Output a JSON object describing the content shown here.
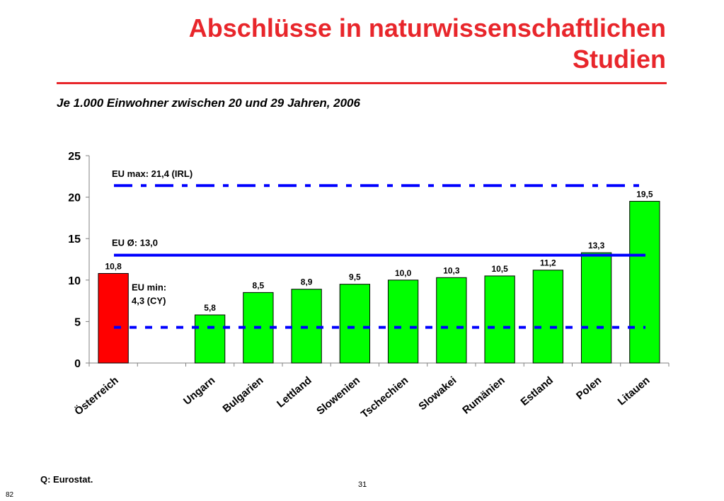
{
  "header": {
    "title_lines": [
      "Abschlüsse in naturwissenschaftlichen",
      "Studien"
    ],
    "subtitle": "Je 1.000 Einwohner zwischen 20 und 29 Jahren, 2006"
  },
  "footer": {
    "source": "Q: Eurostat.",
    "page_number": "31",
    "corner_number": "82"
  },
  "colors": {
    "title": "#e8262b",
    "highlight_bar": "#ff0000",
    "bar": "#00ff00",
    "reference_lines": "#0000ff"
  },
  "chart_data": {
    "type": "bar",
    "categories": [
      "Österreich",
      "",
      "Ungarn",
      "Bulgarien",
      "Lettland",
      "Slowenien",
      "Tschechien",
      "Slowakei",
      "Rumänien",
      "Estland",
      "Polen",
      "Litauen"
    ],
    "values": [
      10.8,
      null,
      5.8,
      8.5,
      8.9,
      9.5,
      10.0,
      10.3,
      10.5,
      11.2,
      13.3,
      19.5
    ],
    "value_labels": [
      "10,8",
      "",
      "5,8",
      "8,5",
      "8,9",
      "9,5",
      "10,0",
      "10,3",
      "10,5",
      "11,2",
      "13,3",
      "19,5"
    ],
    "highlight_index": 0,
    "ylim": [
      0,
      25
    ],
    "yticks": [
      0,
      5,
      10,
      15,
      20,
      25
    ],
    "grid": false,
    "reference_lines": [
      {
        "value": 21.4,
        "label": "EU max: 21,4 (IRL)",
        "style": "dash-dot"
      },
      {
        "value": 13.0,
        "label": "EU Ø: 13,0",
        "style": "solid"
      },
      {
        "value": 4.3,
        "label": "EU min:\n4,3 (CY)",
        "style": "dashed"
      }
    ]
  }
}
